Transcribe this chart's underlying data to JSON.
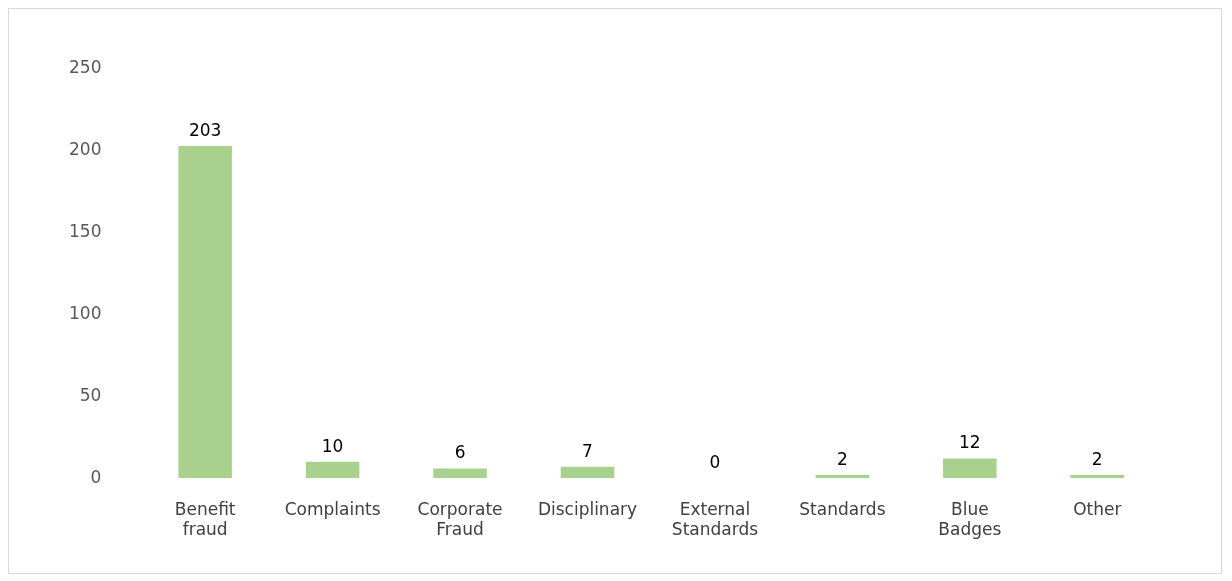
{
  "chart_data": {
    "type": "bar",
    "categories": [
      "Benefit fraud",
      "Complaints",
      "Corporate Fraud",
      "Disciplinary",
      "External Standards",
      "Standards",
      "Blue Badges",
      "Other"
    ],
    "values": [
      203,
      10,
      6,
      7,
      0,
      2,
      12,
      2
    ],
    "color": "#a9d18e",
    "ylim": [
      0,
      250
    ],
    "yticks": [
      0,
      50,
      100,
      150,
      200,
      250
    ],
    "grid": false,
    "legend": false,
    "data_labels": true
  }
}
